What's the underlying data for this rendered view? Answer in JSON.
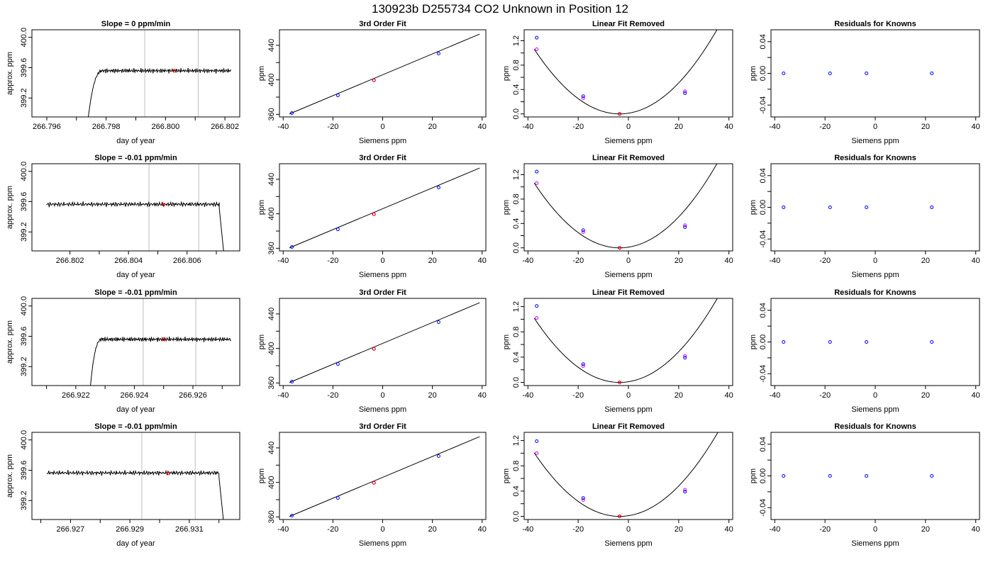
{
  "figure": {
    "title": "130923b     D255734   CO2 Unknown in Position  12",
    "colors": {
      "trace": "#000000",
      "marker": "#0000ff",
      "highlight": "#ff0000",
      "alt": "#cc00ff",
      "vline": "#bebebe"
    }
  },
  "chart_data": [
    {
      "row": 0,
      "panel": "trace",
      "type": "line",
      "title": "Slope =  0  ppm/min",
      "xlabel": "day of year",
      "ylabel": "approx. ppm",
      "xlim": [
        266.7955,
        266.8025
      ],
      "ylim": [
        398.95,
        400.1
      ],
      "xticks": [
        266.796,
        266.798,
        266.8,
        266.802
      ],
      "xtick_labels": [
        "266.796",
        "266.798",
        "266.800",
        "266.802"
      ],
      "yticks": [
        399.2,
        399.6,
        400.0
      ],
      "ytick_labels": [
        "399.2",
        "399.6",
        "400.0"
      ],
      "xminor": [
        266.797,
        266.799,
        266.801
      ],
      "vlines": [
        266.7993,
        266.8011
      ],
      "trace": {
        "start": 266.7974,
        "end": 266.8022,
        "rise_from": 398.95,
        "rise_end": 266.7979,
        "level": 399.56,
        "tail": null
      },
      "marker": {
        "x": 266.8003,
        "y": 399.56
      }
    },
    {
      "row": 0,
      "panel": "fit",
      "type": "scatter",
      "title": "3rd Order Fit",
      "xlabel": "Siemens ppm",
      "ylabel": "ppm",
      "xlim": [
        -41.5,
        41.5
      ],
      "ylim": [
        357,
        458
      ],
      "xticks": [
        -40,
        -20,
        0,
        20,
        40
      ],
      "xtick_labels": [
        "-40",
        "-20",
        "0",
        "20",
        "40"
      ],
      "yticks": [
        360,
        400,
        440
      ],
      "ytick_labels": [
        "360",
        "400",
        "440"
      ],
      "yminor": [
        380,
        420
      ],
      "line": [
        [
          -37.5,
          360.5
        ],
        [
          39,
          453
        ]
      ],
      "points": [
        {
          "x": -36.5,
          "y": 361.5
        },
        {
          "x": -18,
          "y": 382
        },
        {
          "x": -3.5,
          "y": 399.5
        },
        {
          "x": 22.5,
          "y": 430.5
        }
      ],
      "highlight": {
        "x": -3.5,
        "y": 399.5
      }
    },
    {
      "row": 0,
      "panel": "linear_removed",
      "type": "scatter",
      "title": "Linear Fit Removed",
      "xlabel": "Siemens ppm",
      "ylabel": "ppm",
      "xlim": [
        -41.5,
        41.5
      ],
      "ylim": [
        -0.05,
        1.38
      ],
      "xticks": [
        -40,
        -20,
        0,
        20,
        40
      ],
      "xtick_labels": [
        "-40",
        "-20",
        "0",
        "20",
        "40"
      ],
      "yticks": [
        0.0,
        0.4,
        0.8,
        1.2
      ],
      "ytick_labels": [
        "0.0",
        "0.4",
        "0.8",
        "1.2"
      ],
      "yminor": [
        0.2,
        0.6,
        1.0
      ],
      "curve": {
        "x0": -37.5,
        "x1": 39,
        "a": 0.00092,
        "b": 0.0,
        "c": 0.0
      },
      "points": [
        {
          "x": -36.5,
          "y": 1.25
        },
        {
          "x": -18,
          "y": 0.29
        },
        {
          "x": -3.5,
          "y": 0.0
        },
        {
          "x": 22.5,
          "y": 0.34
        }
      ],
      "alt_points": [
        {
          "x": -36.5,
          "y": 1.06
        },
        {
          "x": -18,
          "y": 0.26
        },
        {
          "x": 22.5,
          "y": 0.37
        }
      ],
      "highlight": {
        "x": -3.5,
        "y": 0.0
      }
    },
    {
      "row": 0,
      "panel": "residuals",
      "type": "scatter",
      "title": "Residuals for Knowns",
      "xlabel": "Siemens ppm",
      "ylabel": "ppm",
      "xlim": [
        -41.5,
        41.5
      ],
      "ylim": [
        -0.055,
        0.055
      ],
      "xticks": [
        -40,
        -20,
        0,
        20,
        40
      ],
      "xtick_labels": [
        "-40",
        "-20",
        "0",
        "20",
        "40"
      ],
      "yticks": [
        -0.04,
        0.0,
        0.04
      ],
      "ytick_labels": [
        "-0.04",
        "0.00",
        "0.04"
      ],
      "yminor": [
        -0.02,
        0.02
      ],
      "points": [
        {
          "x": -36.5,
          "y": 0.0
        },
        {
          "x": -18,
          "y": 0.0
        },
        {
          "x": -3.5,
          "y": 0.0
        },
        {
          "x": 22.5,
          "y": 0.0
        }
      ]
    },
    {
      "row": 1,
      "panel": "trace",
      "type": "line",
      "title": "Slope =  -0.01  ppm/min",
      "xlabel": "day of year",
      "ylabel": "approx. ppm",
      "xlim": [
        266.8007,
        266.8078
      ],
      "ylim": [
        398.95,
        400.1
      ],
      "xticks": [
        266.802,
        266.804,
        266.806
      ],
      "xtick_labels": [
        "266.802",
        "266.804",
        "266.806"
      ],
      "yticks": [
        399.2,
        399.6,
        400.0
      ],
      "ytick_labels": [
        "399.2",
        "399.6",
        "400.0"
      ],
      "xminor": [
        266.803,
        266.805,
        266.807
      ],
      "vlines": [
        266.8047,
        266.8064
      ],
      "trace": {
        "start": 266.8012,
        "end": 266.8071,
        "rise_from": null,
        "rise_end": null,
        "level": 399.565,
        "tail": {
          "from": 266.8071,
          "to": 266.8073,
          "drop_to": 398.95
        }
      },
      "marker": {
        "x": 266.8052,
        "y": 399.56
      }
    },
    {
      "row": 1,
      "panel": "fit",
      "type": "scatter",
      "title": "3rd Order Fit",
      "xlabel": "Siemens ppm",
      "ylabel": "ppm",
      "xlim": [
        -41.5,
        41.5
      ],
      "ylim": [
        357,
        458
      ],
      "xticks": [
        -40,
        -20,
        0,
        20,
        40
      ],
      "xtick_labels": [
        "-40",
        "-20",
        "0",
        "20",
        "40"
      ],
      "yticks": [
        360,
        400,
        440
      ],
      "ytick_labels": [
        "360",
        "400",
        "440"
      ],
      "yminor": [
        380,
        420
      ],
      "line": [
        [
          -37.5,
          360.5
        ],
        [
          39,
          453
        ]
      ],
      "points": [
        {
          "x": -36.5,
          "y": 361.5
        },
        {
          "x": -18,
          "y": 382
        },
        {
          "x": -3.5,
          "y": 399.5
        },
        {
          "x": 22.5,
          "y": 430.5
        }
      ],
      "highlight": {
        "x": -3.5,
        "y": 399.5
      }
    },
    {
      "row": 1,
      "panel": "linear_removed",
      "type": "scatter",
      "title": "Linear Fit Removed",
      "xlabel": "Siemens ppm",
      "ylabel": "ppm",
      "xlim": [
        -41.5,
        41.5
      ],
      "ylim": [
        -0.05,
        1.38
      ],
      "xticks": [
        -40,
        -20,
        0,
        20,
        40
      ],
      "xtick_labels": [
        "-40",
        "-20",
        "0",
        "20",
        "40"
      ],
      "yticks": [
        0.0,
        0.4,
        0.8,
        1.2
      ],
      "ytick_labels": [
        "0.0",
        "0.4",
        "0.8",
        "1.2"
      ],
      "yminor": [
        0.2,
        0.6,
        1.0
      ],
      "curve": {
        "x0": -37.5,
        "x1": 39,
        "a": 0.00092,
        "b": 0.0,
        "c": 0.0
      },
      "points": [
        {
          "x": -36.5,
          "y": 1.25
        },
        {
          "x": -18,
          "y": 0.29
        },
        {
          "x": -3.5,
          "y": 0.0
        },
        {
          "x": 22.5,
          "y": 0.34
        }
      ],
      "alt_points": [
        {
          "x": -36.5,
          "y": 1.06
        },
        {
          "x": -18,
          "y": 0.26
        },
        {
          "x": 22.5,
          "y": 0.37
        }
      ],
      "highlight": {
        "x": -3.5,
        "y": 0.0
      }
    },
    {
      "row": 1,
      "panel": "residuals",
      "type": "scatter",
      "title": "Residuals for Knowns",
      "xlabel": "Siemens ppm",
      "ylabel": "ppm",
      "xlim": [
        -41.5,
        41.5
      ],
      "ylim": [
        -0.055,
        0.055
      ],
      "xticks": [
        -40,
        -20,
        0,
        20,
        40
      ],
      "xtick_labels": [
        "-40",
        "-20",
        "0",
        "20",
        "40"
      ],
      "yticks": [
        -0.04,
        0.0,
        0.04
      ],
      "ytick_labels": [
        "-0.04",
        "0.00",
        "0.04"
      ],
      "yminor": [
        -0.02,
        0.02
      ],
      "points": [
        {
          "x": -36.5,
          "y": 0.0
        },
        {
          "x": -18,
          "y": 0.0
        },
        {
          "x": -3.5,
          "y": 0.0
        },
        {
          "x": 22.5,
          "y": 0.0
        }
      ]
    },
    {
      "row": 2,
      "panel": "trace",
      "type": "line",
      "title": "Slope =  -0.01  ppm/min",
      "xlabel": "day of year",
      "ylabel": "approx. ppm",
      "xlim": [
        266.9205,
        266.9276
      ],
      "ylim": [
        398.95,
        400.1
      ],
      "xticks": [
        266.922,
        266.924,
        266.926
      ],
      "xtick_labels": [
        "266.922",
        "266.924",
        "266.926"
      ],
      "yticks": [
        399.2,
        399.6,
        400.0
      ],
      "ytick_labels": [
        "399.2",
        "399.6",
        "400.0"
      ],
      "xminor": [
        266.921,
        266.923,
        266.925,
        266.927
      ],
      "vlines": [
        266.9243,
        266.9261
      ],
      "trace": {
        "start": 266.9225,
        "end": 266.9273,
        "rise_from": 398.95,
        "rise_end": 266.9229,
        "level": 399.56,
        "tail": null
      },
      "marker": {
        "x": 266.925,
        "y": 399.56
      }
    },
    {
      "row": 2,
      "panel": "fit",
      "type": "scatter",
      "title": "3rd Order Fit",
      "xlabel": "Siemens ppm",
      "ylabel": "ppm",
      "xlim": [
        -41.5,
        41.5
      ],
      "ylim": [
        357,
        458
      ],
      "xticks": [
        -40,
        -20,
        0,
        20,
        40
      ],
      "xtick_labels": [
        "-40",
        "-20",
        "0",
        "20",
        "40"
      ],
      "yticks": [
        360,
        400,
        440
      ],
      "ytick_labels": [
        "360",
        "400",
        "440"
      ],
      "yminor": [
        380,
        420
      ],
      "line": [
        [
          -37.5,
          360.5
        ],
        [
          39,
          453
        ]
      ],
      "points": [
        {
          "x": -36.5,
          "y": 361.5
        },
        {
          "x": -18,
          "y": 382
        },
        {
          "x": -3.5,
          "y": 399.5
        },
        {
          "x": 22.5,
          "y": 430.5
        }
      ],
      "highlight": {
        "x": -3.5,
        "y": 399.5
      }
    },
    {
      "row": 2,
      "panel": "linear_removed",
      "type": "scatter",
      "title": "Linear Fit Removed",
      "xlabel": "Siemens ppm",
      "ylabel": "ppm",
      "xlim": [
        -41.5,
        41.5
      ],
      "ylim": [
        -0.05,
        1.33
      ],
      "xticks": [
        -40,
        -20,
        0,
        20,
        40
      ],
      "xtick_labels": [
        "-40",
        "-20",
        "0",
        "20",
        "40"
      ],
      "yticks": [
        0.0,
        0.4,
        0.8,
        1.2
      ],
      "ytick_labels": [
        "0.0",
        "0.4",
        "0.8",
        "1.2"
      ],
      "yminor": [
        0.2,
        0.6,
        1.0
      ],
      "curve": {
        "x0": -37.5,
        "x1": 39,
        "a": 0.00088,
        "b": 0.0,
        "c": 0.0
      },
      "points": [
        {
          "x": -36.5,
          "y": 1.21
        },
        {
          "x": -18,
          "y": 0.29
        },
        {
          "x": -3.5,
          "y": 0.0
        },
        {
          "x": 22.5,
          "y": 0.39
        }
      ],
      "alt_points": [
        {
          "x": -36.5,
          "y": 1.02
        },
        {
          "x": -18,
          "y": 0.26
        },
        {
          "x": 22.5,
          "y": 0.42
        }
      ],
      "highlight": {
        "x": -3.5,
        "y": 0.0
      }
    },
    {
      "row": 2,
      "panel": "residuals",
      "type": "scatter",
      "title": "Residuals for Knowns",
      "xlabel": "Siemens ppm",
      "ylabel": "ppm",
      "xlim": [
        -41.5,
        41.5
      ],
      "ylim": [
        -0.055,
        0.055
      ],
      "xticks": [
        -40,
        -20,
        0,
        20,
        40
      ],
      "xtick_labels": [
        "-40",
        "-20",
        "0",
        "20",
        "40"
      ],
      "yticks": [
        -0.04,
        0.0,
        0.04
      ],
      "ytick_labels": [
        "-0.04",
        "0.00",
        "0.04"
      ],
      "yminor": [
        -0.02,
        0.02
      ],
      "points": [
        {
          "x": -36.5,
          "y": 0.0
        },
        {
          "x": -18,
          "y": 0.0
        },
        {
          "x": -3.5,
          "y": 0.0
        },
        {
          "x": 22.5,
          "y": 0.0
        }
      ]
    },
    {
      "row": 3,
      "panel": "trace",
      "type": "line",
      "title": "Slope =  -0.01  ppm/min",
      "xlabel": "day of year",
      "ylabel": "approx. ppm",
      "xlim": [
        266.9257,
        266.9327
      ],
      "ylim": [
        398.95,
        400.1
      ],
      "xticks": [
        266.927,
        266.929,
        266.931
      ],
      "xtick_labels": [
        "266.927",
        "266.929",
        "266.931"
      ],
      "yticks": [
        399.2,
        399.6,
        400.0
      ],
      "ytick_labels": [
        "399.2",
        "399.6",
        "400.0"
      ],
      "xminor": [
        266.926,
        266.928,
        266.93,
        266.932
      ],
      "vlines": [
        266.9294,
        266.9312
      ],
      "trace": {
        "start": 266.9262,
        "end": 266.932,
        "rise_from": null,
        "rise_end": null,
        "level": 399.565,
        "tail": {
          "from": 266.932,
          "to": 266.9322,
          "drop_to": 398.95
        }
      },
      "marker": {
        "x": 266.9303,
        "y": 399.56
      }
    },
    {
      "row": 3,
      "panel": "fit",
      "type": "scatter",
      "title": "3rd Order Fit",
      "xlabel": "Siemens ppm",
      "ylabel": "ppm",
      "xlim": [
        -41.5,
        41.5
      ],
      "ylim": [
        357,
        458
      ],
      "xticks": [
        -40,
        -20,
        0,
        20,
        40
      ],
      "xtick_labels": [
        "-40",
        "-20",
        "0",
        "20",
        "40"
      ],
      "yticks": [
        360,
        400,
        440
      ],
      "ytick_labels": [
        "360",
        "400",
        "440"
      ],
      "yminor": [
        380,
        420
      ],
      "line": [
        [
          -37.5,
          360.5
        ],
        [
          39,
          453
        ]
      ],
      "points": [
        {
          "x": -36.5,
          "y": 361.5
        },
        {
          "x": -18,
          "y": 382
        },
        {
          "x": -3.5,
          "y": 399.5
        },
        {
          "x": 22.5,
          "y": 430.5
        }
      ],
      "highlight": {
        "x": -3.5,
        "y": 399.5
      }
    },
    {
      "row": 3,
      "panel": "linear_removed",
      "type": "scatter",
      "title": "Linear Fit Removed",
      "xlabel": "Siemens ppm",
      "ylabel": "ppm",
      "xlim": [
        -41.5,
        41.5
      ],
      "ylim": [
        -0.05,
        1.33
      ],
      "xticks": [
        -40,
        -20,
        0,
        20,
        40
      ],
      "xtick_labels": [
        "-40",
        "-20",
        "0",
        "20",
        "40"
      ],
      "yticks": [
        0.0,
        0.4,
        0.8,
        1.2
      ],
      "ytick_labels": [
        "0.0",
        "0.4",
        "0.8",
        "1.2"
      ],
      "yminor": [
        0.2,
        0.6,
        1.0
      ],
      "curve": {
        "x0": -37.5,
        "x1": 39,
        "a": 0.00087,
        "b": 0.0,
        "c": 0.0
      },
      "points": [
        {
          "x": -36.5,
          "y": 1.19
        },
        {
          "x": -18,
          "y": 0.29
        },
        {
          "x": -3.5,
          "y": 0.0
        },
        {
          "x": 22.5,
          "y": 0.39
        }
      ],
      "alt_points": [
        {
          "x": -36.5,
          "y": 1.0
        },
        {
          "x": -18,
          "y": 0.26
        },
        {
          "x": 22.5,
          "y": 0.42
        }
      ],
      "highlight": {
        "x": -3.5,
        "y": 0.0
      }
    },
    {
      "row": 3,
      "panel": "residuals",
      "type": "scatter",
      "title": "Residuals for Knowns",
      "xlabel": "Siemens ppm",
      "ylabel": "ppm",
      "xlim": [
        -41.5,
        41.5
      ],
      "ylim": [
        -0.055,
        0.055
      ],
      "xticks": [
        -40,
        -20,
        0,
        20,
        40
      ],
      "xtick_labels": [
        "-40",
        "-20",
        "0",
        "20",
        "40"
      ],
      "yticks": [
        -0.04,
        0.0,
        0.04
      ],
      "ytick_labels": [
        "-0.04",
        "0.00",
        "0.04"
      ],
      "yminor": [
        -0.02,
        0.02
      ],
      "points": [
        {
          "x": -36.5,
          "y": 0.0
        },
        {
          "x": -18,
          "y": 0.0
        },
        {
          "x": -3.5,
          "y": 0.0
        },
        {
          "x": 22.5,
          "y": 0.0
        }
      ]
    }
  ]
}
